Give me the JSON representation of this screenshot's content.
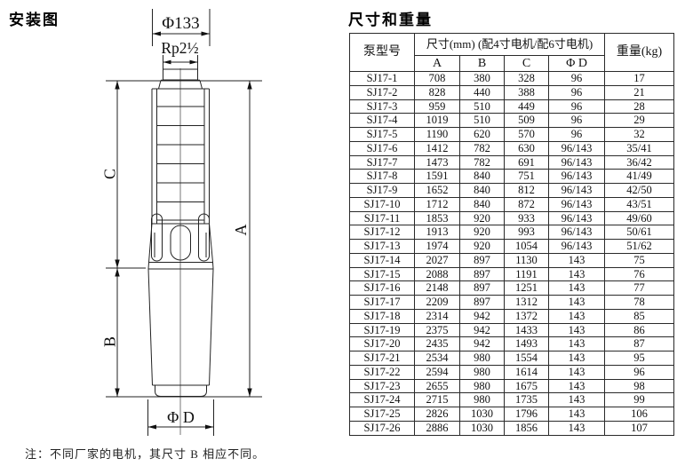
{
  "left_panel": {
    "title": "安装图",
    "note": "注：不同厂家的电机，其尺寸 B 相应不同。",
    "diagram_labels": {
      "top_diameter": "Φ133",
      "thread": "Rp2½",
      "dim_c": "C",
      "dim_b": "B",
      "dim_a": "A",
      "bottom_diameter": "Φ D"
    }
  },
  "right_panel": {
    "title": "尺寸和重量",
    "table": {
      "header": {
        "model": "泵型号",
        "dims_group": "尺寸(mm) (配4寸电机/配6寸电机)",
        "weight": "重量(kg)",
        "sub": [
          "A",
          "B",
          "C",
          "Φ D"
        ]
      },
      "rows": [
        [
          "SJ17-1",
          "708",
          "380",
          "328",
          "96",
          "17"
        ],
        [
          "SJ17-2",
          "828",
          "440",
          "388",
          "96",
          "21"
        ],
        [
          "SJ17-3",
          "959",
          "510",
          "449",
          "96",
          "28"
        ],
        [
          "SJ17-4",
          "1019",
          "510",
          "509",
          "96",
          "29"
        ],
        [
          "SJ17-5",
          "1190",
          "620",
          "570",
          "96",
          "32"
        ],
        [
          "SJ17-6",
          "1412",
          "782",
          "630",
          "96/143",
          "35/41"
        ],
        [
          "SJ17-7",
          "1473",
          "782",
          "691",
          "96/143",
          "36/42"
        ],
        [
          "SJ17-8",
          "1591",
          "840",
          "751",
          "96/143",
          "41/49"
        ],
        [
          "SJ17-9",
          "1652",
          "840",
          "812",
          "96/143",
          "42/50"
        ],
        [
          "SJ17-10",
          "1712",
          "840",
          "872",
          "96/143",
          "43/51"
        ],
        [
          "SJ17-11",
          "1853",
          "920",
          "933",
          "96/143",
          "49/60"
        ],
        [
          "SJ17-12",
          "1913",
          "920",
          "993",
          "96/143",
          "50/61"
        ],
        [
          "SJ17-13",
          "1974",
          "920",
          "1054",
          "96/143",
          "51/62"
        ],
        [
          "SJ17-14",
          "2027",
          "897",
          "1130",
          "143",
          "75"
        ],
        [
          "SJ17-15",
          "2088",
          "897",
          "1191",
          "143",
          "76"
        ],
        [
          "SJ17-16",
          "2148",
          "897",
          "1251",
          "143",
          "77"
        ],
        [
          "SJ17-17",
          "2209",
          "897",
          "1312",
          "143",
          "78"
        ],
        [
          "SJ17-18",
          "2314",
          "942",
          "1372",
          "143",
          "85"
        ],
        [
          "SJ17-19",
          "2375",
          "942",
          "1433",
          "143",
          "86"
        ],
        [
          "SJ17-20",
          "2435",
          "942",
          "1493",
          "143",
          "87"
        ],
        [
          "SJ17-21",
          "2534",
          "980",
          "1554",
          "143",
          "95"
        ],
        [
          "SJ17-22",
          "2594",
          "980",
          "1614",
          "143",
          "96"
        ],
        [
          "SJ17-23",
          "2655",
          "980",
          "1675",
          "143",
          "98"
        ],
        [
          "SJ17-24",
          "2715",
          "980",
          "1735",
          "143",
          "99"
        ],
        [
          "SJ17-25",
          "2826",
          "1030",
          "1796",
          "143",
          "106"
        ],
        [
          "SJ17-26",
          "2886",
          "1030",
          "1856",
          "143",
          "107"
        ]
      ]
    }
  }
}
